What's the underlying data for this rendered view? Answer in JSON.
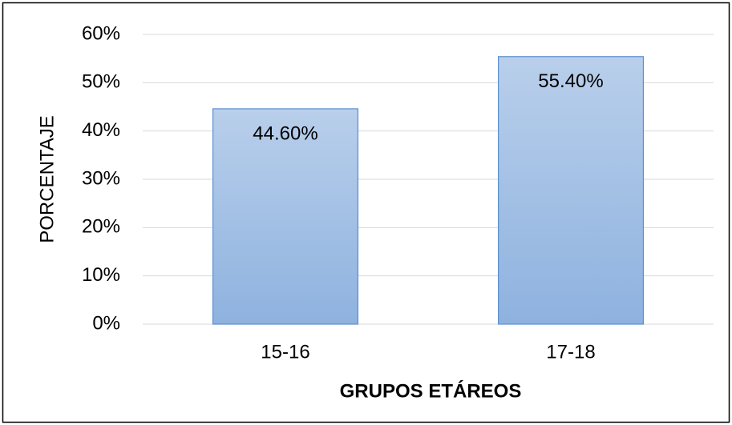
{
  "chart_data": {
    "type": "bar",
    "x_label": "GRUPOS ETÁREOS",
    "y_label": "PORCENTAJE",
    "categories": [
      "15-16",
      "17-18"
    ],
    "values": [
      44.6,
      55.4
    ],
    "value_labels": [
      "44.60%",
      "55.40%"
    ],
    "color": "#a3c0e6",
    "ylim": [
      0,
      60
    ],
    "yticks": [
      {
        "value": 0,
        "label": "0%"
      },
      {
        "value": 10,
        "label": "10%"
      },
      {
        "value": 20,
        "label": "20%"
      },
      {
        "value": 30,
        "label": "30%"
      },
      {
        "value": 40,
        "label": "40%"
      },
      {
        "value": 50,
        "label": "50%"
      },
      {
        "value": 60,
        "label": "60%"
      }
    ],
    "grid": true
  }
}
